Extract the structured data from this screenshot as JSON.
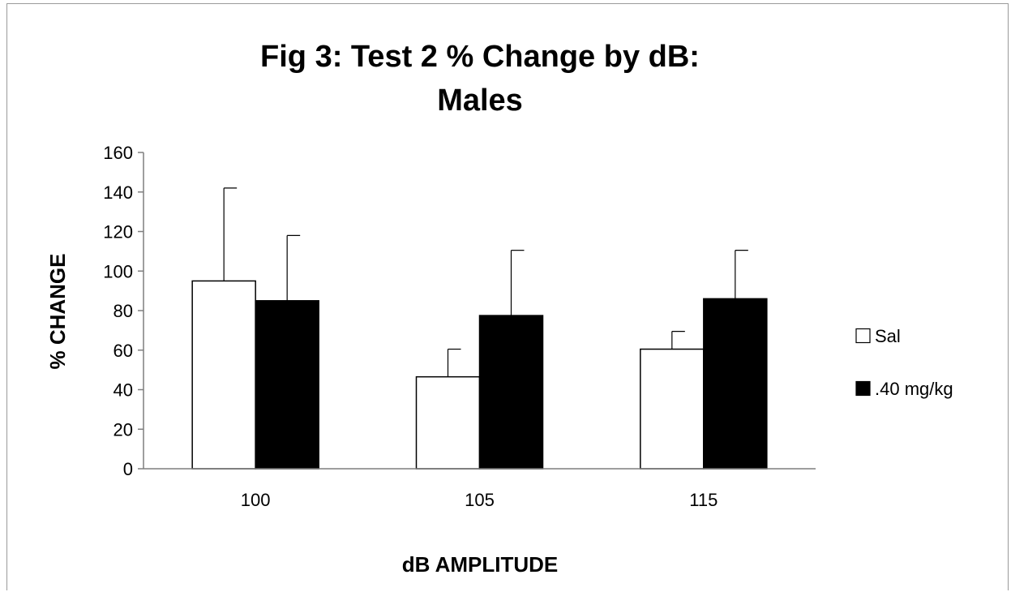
{
  "chart_data": {
    "type": "bar",
    "title": [
      "Fig 3: Test 2 % Change by dB:",
      "Males"
    ],
    "xlabel": "dB AMPLITUDE",
    "ylabel": "% CHANGE",
    "categories": [
      "100",
      "105",
      "115"
    ],
    "ylim": [
      0,
      160
    ],
    "yticks": [
      0,
      20,
      40,
      60,
      80,
      100,
      120,
      140,
      160
    ],
    "series": [
      {
        "name": "Sal",
        "color": "#ffffff",
        "values": [
          95,
          46.5,
          60.5
        ],
        "error": [
          47,
          14,
          9
        ]
      },
      {
        "name": ".40 mg/kg",
        "color": "#000000",
        "values": [
          85,
          77.5,
          86
        ],
        "error": [
          33,
          33,
          24.5
        ]
      }
    ],
    "legend": "right",
    "grid": false
  },
  "colors": {
    "frame": "#9a9a9a",
    "axis": "#7f7f7f"
  }
}
